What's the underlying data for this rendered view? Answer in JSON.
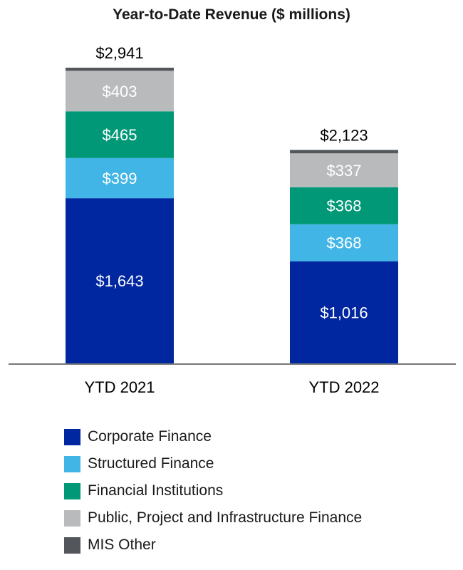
{
  "chart_data": {
    "type": "bar",
    "stacked": true,
    "title": "Year-to-Date Revenue ($ millions)",
    "categories": [
      "YTD 2021",
      "YTD 2022"
    ],
    "series": [
      {
        "name": "Corporate Finance",
        "color": "#0026a0",
        "values": [
          1643,
          1016
        ],
        "labels": [
          "$1,643",
          "$1,016"
        ]
      },
      {
        "name": "Structured Finance",
        "color": "#41b6e6",
        "values": [
          399,
          368
        ],
        "labels": [
          "$399",
          "$368"
        ]
      },
      {
        "name": "Financial Institutions",
        "color": "#009877",
        "values": [
          465,
          368
        ],
        "labels": [
          "$465",
          "$368"
        ]
      },
      {
        "name": "Public, Project and Infrastructure Finance",
        "color": "#b9babb",
        "values": [
          403,
          337
        ],
        "labels": [
          "$403",
          "$337"
        ]
      },
      {
        "name": "MIS Other",
        "color": "#53565a",
        "values": [
          31,
          34
        ],
        "labels": [
          "",
          ""
        ]
      }
    ],
    "totals": [
      2941,
      2123
    ],
    "total_labels": [
      "$2,941",
      "$2,123"
    ],
    "legend_position": "bottom-left",
    "grid": false
  }
}
